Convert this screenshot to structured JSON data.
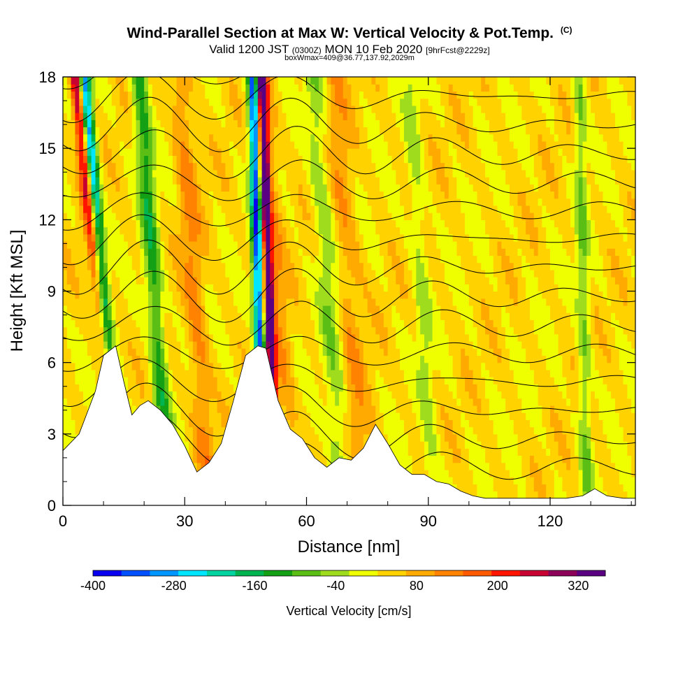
{
  "title": {
    "main": "Wind-Parallel Section at Max W: Vertical Velocity & Pot.Temp.",
    "copyright": "(C)",
    "valid_prefix": "Valid 1200 JST",
    "valid_zulu": "(0300Z)",
    "valid_date": "MON 10 Feb 2020",
    "forecast": "[9hrFcst@2229z]",
    "boxinfo": "boxWmax=409@36.77,137.92,2029m"
  },
  "colors": {
    "bins": [
      "#0a00f0",
      "#0050ff",
      "#0096ff",
      "#00e6ff",
      "#00d2a0",
      "#00b450",
      "#14a014",
      "#5abe14",
      "#a0dc1e",
      "#f0ff00",
      "#ffd200",
      "#ffaa00",
      "#ff8200",
      "#ff5a00",
      "#ff1400",
      "#c80032",
      "#8c005a",
      "#5a0082"
    ],
    "terrain": "#ffffff",
    "contour": "#000000"
  },
  "chart_data": {
    "type": "heatmap",
    "title": "Wind-Parallel Section at Max W: Vertical Velocity & Pot.Temp.",
    "xlabel": "Distance [nm]",
    "ylabel": "Height [Kft MSL]",
    "xlim": [
      0,
      141
    ],
    "ylim": [
      0,
      18
    ],
    "xticks": [
      0,
      30,
      60,
      90,
      120
    ],
    "yticks": [
      0,
      3,
      6,
      9,
      12,
      15,
      18
    ],
    "colorbar": {
      "label": "Vertical Velocity [cm/s]",
      "min": -400,
      "max": 360,
      "step": 40,
      "tick_labels": [
        -400,
        -280,
        -160,
        -40,
        80,
        200,
        320
      ]
    },
    "terrain_profile": {
      "x": [
        0,
        4,
        8,
        10,
        13,
        15,
        17,
        19,
        21,
        24,
        27,
        30,
        33,
        36,
        39,
        42,
        45,
        48,
        50,
        53,
        56,
        59,
        62,
        65,
        68,
        71,
        74,
        77,
        80,
        83,
        86,
        89,
        92,
        95,
        98,
        101,
        104,
        108,
        112,
        116,
        120,
        124,
        128,
        131,
        134,
        138,
        141
      ],
      "y": [
        2.3,
        3.0,
        4.8,
        6.3,
        6.7,
        5.2,
        3.8,
        4.2,
        4.4,
        4.0,
        3.4,
        2.5,
        1.4,
        1.8,
        2.6,
        4.4,
        6.3,
        6.7,
        6.6,
        4.4,
        3.2,
        2.8,
        2.0,
        1.6,
        2.0,
        1.9,
        2.4,
        3.4,
        2.6,
        1.7,
        1.3,
        1.3,
        1.0,
        0.9,
        0.6,
        0.4,
        0.3,
        0.3,
        0.3,
        0.3,
        0.3,
        0.3,
        0.4,
        0.7,
        0.4,
        0.3,
        0.3
      ]
    },
    "updraft_plumes": [
      {
        "x_base": 14.5,
        "tilt_nm_per_kft": -0.62,
        "peak_cm_s": 360,
        "width_nm": 1.5
      },
      {
        "x_base": 52.5,
        "tilt_nm_per_kft": -0.2,
        "peak_cm_s": 360,
        "width_nm": 1.2
      },
      {
        "x_base": 36,
        "tilt_nm_per_kft": -0.4,
        "peak_cm_s": 80,
        "width_nm": 2.5
      },
      {
        "x_base": 57,
        "tilt_nm_per_kft": -0.4,
        "peak_cm_s": 60,
        "width_nm": 2
      },
      {
        "x_base": 74,
        "tilt_nm_per_kft": -0.4,
        "peak_cm_s": 60,
        "width_nm": 3
      }
    ],
    "downdraft_plumes": [
      {
        "x_base": 14.0,
        "tilt_nm_per_kft": -0.5,
        "peak_cm_s": -400,
        "width_nm": 1.6
      },
      {
        "x_base": 49.5,
        "tilt_nm_per_kft": -0.15,
        "peak_cm_s": -360,
        "width_nm": 1.3
      },
      {
        "x_base": 26,
        "tilt_nm_per_kft": -0.4,
        "peak_cm_s": -150,
        "width_nm": 2
      },
      {
        "x_base": 69,
        "tilt_nm_per_kft": -0.4,
        "peak_cm_s": -80,
        "width_nm": 2.5
      },
      {
        "x_base": 91,
        "tilt_nm_per_kft": -0.3,
        "peak_cm_s": -60,
        "width_nm": 2
      },
      {
        "x_base": 129,
        "tilt_nm_per_kft": -0.1,
        "peak_cm_s": -90,
        "width_nm": 1.5
      }
    ],
    "theta_contour_base_kft": [
      1.6,
      2.8,
      4.0,
      5.2,
      6.4,
      7.6,
      8.8,
      10.0,
      11.2,
      12.4,
      13.6,
      14.8,
      16.0,
      17.2,
      18.4
    ]
  }
}
